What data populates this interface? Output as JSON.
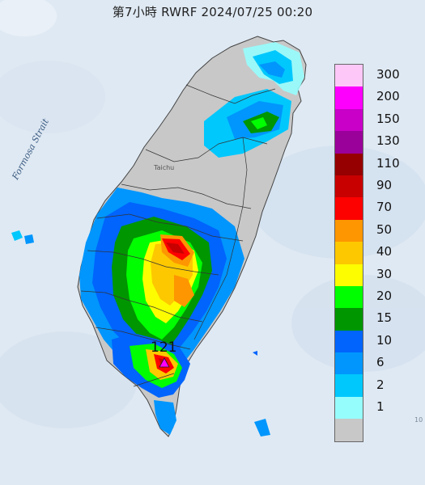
{
  "title": "第7小時  RWRF 2024/07/25 00:20",
  "labels": {
    "strait": "Formosa Strait",
    "city": "Taichu",
    "max_value": "121",
    "corner": "10"
  },
  "marker_icon": "triangle-icon",
  "legend": [
    {
      "label": "300",
      "color": "#fdc8f8"
    },
    {
      "label": "200",
      "color": "#fd00fd"
    },
    {
      "label": "150",
      "color": "#c800c8"
    },
    {
      "label": "130",
      "color": "#9a009a"
    },
    {
      "label": "110",
      "color": "#960000"
    },
    {
      "label": "90",
      "color": "#c80000"
    },
    {
      "label": "70",
      "color": "#fd0000"
    },
    {
      "label": "50",
      "color": "#fd9600"
    },
    {
      "label": "40",
      "color": "#fdc800"
    },
    {
      "label": "30",
      "color": "#fdfd00"
    },
    {
      "label": "20",
      "color": "#00fd00"
    },
    {
      "label": "15",
      "color": "#009600"
    },
    {
      "label": "10",
      "color": "#0064fd"
    },
    {
      "label": "6",
      "color": "#0096fd"
    },
    {
      "label": "2",
      "color": "#00c8fd"
    },
    {
      "label": "1",
      "color": "#96fdfd"
    },
    {
      "label": "",
      "color": "#c8c8c8"
    }
  ],
  "colors": {
    "sea": "#dfe9f3",
    "land_no_rain": "#c8c8c8",
    "marker": "#ff00ff"
  }
}
